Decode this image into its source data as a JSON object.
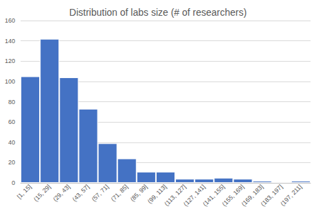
{
  "chart_data": {
    "type": "bar",
    "title": "Distribution of labs size (# of researchers)",
    "categories": [
      "[1, 15]",
      "(15, 29]",
      "(29, 43]",
      "(43, 57]",
      "(57, 71]",
      "(71, 85]",
      "(85, 99]",
      "(99, 113]",
      "(113, 127]",
      "(127, 141]",
      "(141, 155]",
      "(155, 169]",
      "(169, 183]",
      "(183, 197]",
      "(197, 211]"
    ],
    "values": [
      105,
      142,
      104,
      73,
      39,
      24,
      11,
      11,
      4,
      4,
      5,
      4,
      2,
      1,
      2
    ],
    "color": "#4472c4",
    "ylim": [
      0,
      160
    ],
    "yticks": [
      0,
      20,
      40,
      60,
      80,
      100,
      120,
      140,
      160
    ],
    "grid": true
  }
}
